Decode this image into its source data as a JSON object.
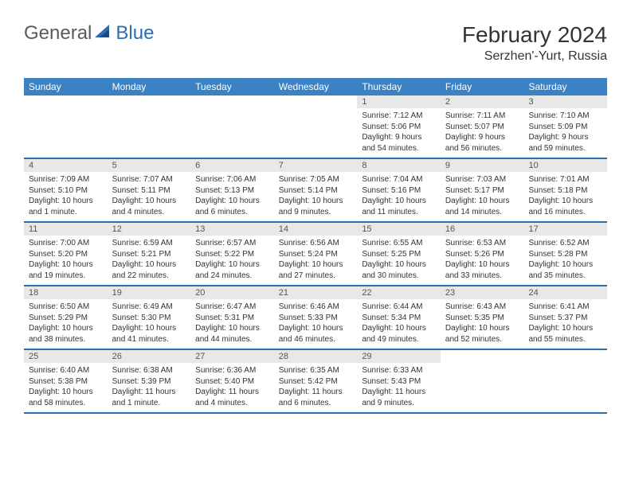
{
  "brand": {
    "word1": "General",
    "word2": "Blue",
    "logo_color": "#2a6db5",
    "text_color": "#5a5a5a"
  },
  "title": {
    "month": "February 2024",
    "location": "Serzhen'-Yurt, Russia"
  },
  "colors": {
    "header_bg": "#3b82c4",
    "header_text": "#ffffff",
    "row_border": "#2a6db5",
    "daynum_bg": "#e8e8e8",
    "body_text": "#333333"
  },
  "weekdays": [
    "Sunday",
    "Monday",
    "Tuesday",
    "Wednesday",
    "Thursday",
    "Friday",
    "Saturday"
  ],
  "weeks": [
    [
      null,
      null,
      null,
      null,
      {
        "n": "1",
        "sunrise": "7:12 AM",
        "sunset": "5:06 PM",
        "daylight": "9 hours and 54 minutes."
      },
      {
        "n": "2",
        "sunrise": "7:11 AM",
        "sunset": "5:07 PM",
        "daylight": "9 hours and 56 minutes."
      },
      {
        "n": "3",
        "sunrise": "7:10 AM",
        "sunset": "5:09 PM",
        "daylight": "9 hours and 59 minutes."
      }
    ],
    [
      {
        "n": "4",
        "sunrise": "7:09 AM",
        "sunset": "5:10 PM",
        "daylight": "10 hours and 1 minute."
      },
      {
        "n": "5",
        "sunrise": "7:07 AM",
        "sunset": "5:11 PM",
        "daylight": "10 hours and 4 minutes."
      },
      {
        "n": "6",
        "sunrise": "7:06 AM",
        "sunset": "5:13 PM",
        "daylight": "10 hours and 6 minutes."
      },
      {
        "n": "7",
        "sunrise": "7:05 AM",
        "sunset": "5:14 PM",
        "daylight": "10 hours and 9 minutes."
      },
      {
        "n": "8",
        "sunrise": "7:04 AM",
        "sunset": "5:16 PM",
        "daylight": "10 hours and 11 minutes."
      },
      {
        "n": "9",
        "sunrise": "7:03 AM",
        "sunset": "5:17 PM",
        "daylight": "10 hours and 14 minutes."
      },
      {
        "n": "10",
        "sunrise": "7:01 AM",
        "sunset": "5:18 PM",
        "daylight": "10 hours and 16 minutes."
      }
    ],
    [
      {
        "n": "11",
        "sunrise": "7:00 AM",
        "sunset": "5:20 PM",
        "daylight": "10 hours and 19 minutes."
      },
      {
        "n": "12",
        "sunrise": "6:59 AM",
        "sunset": "5:21 PM",
        "daylight": "10 hours and 22 minutes."
      },
      {
        "n": "13",
        "sunrise": "6:57 AM",
        "sunset": "5:22 PM",
        "daylight": "10 hours and 24 minutes."
      },
      {
        "n": "14",
        "sunrise": "6:56 AM",
        "sunset": "5:24 PM",
        "daylight": "10 hours and 27 minutes."
      },
      {
        "n": "15",
        "sunrise": "6:55 AM",
        "sunset": "5:25 PM",
        "daylight": "10 hours and 30 minutes."
      },
      {
        "n": "16",
        "sunrise": "6:53 AM",
        "sunset": "5:26 PM",
        "daylight": "10 hours and 33 minutes."
      },
      {
        "n": "17",
        "sunrise": "6:52 AM",
        "sunset": "5:28 PM",
        "daylight": "10 hours and 35 minutes."
      }
    ],
    [
      {
        "n": "18",
        "sunrise": "6:50 AM",
        "sunset": "5:29 PM",
        "daylight": "10 hours and 38 minutes."
      },
      {
        "n": "19",
        "sunrise": "6:49 AM",
        "sunset": "5:30 PM",
        "daylight": "10 hours and 41 minutes."
      },
      {
        "n": "20",
        "sunrise": "6:47 AM",
        "sunset": "5:31 PM",
        "daylight": "10 hours and 44 minutes."
      },
      {
        "n": "21",
        "sunrise": "6:46 AM",
        "sunset": "5:33 PM",
        "daylight": "10 hours and 46 minutes."
      },
      {
        "n": "22",
        "sunrise": "6:44 AM",
        "sunset": "5:34 PM",
        "daylight": "10 hours and 49 minutes."
      },
      {
        "n": "23",
        "sunrise": "6:43 AM",
        "sunset": "5:35 PM",
        "daylight": "10 hours and 52 minutes."
      },
      {
        "n": "24",
        "sunrise": "6:41 AM",
        "sunset": "5:37 PM",
        "daylight": "10 hours and 55 minutes."
      }
    ],
    [
      {
        "n": "25",
        "sunrise": "6:40 AM",
        "sunset": "5:38 PM",
        "daylight": "10 hours and 58 minutes."
      },
      {
        "n": "26",
        "sunrise": "6:38 AM",
        "sunset": "5:39 PM",
        "daylight": "11 hours and 1 minute."
      },
      {
        "n": "27",
        "sunrise": "6:36 AM",
        "sunset": "5:40 PM",
        "daylight": "11 hours and 4 minutes."
      },
      {
        "n": "28",
        "sunrise": "6:35 AM",
        "sunset": "5:42 PM",
        "daylight": "11 hours and 6 minutes."
      },
      {
        "n": "29",
        "sunrise": "6:33 AM",
        "sunset": "5:43 PM",
        "daylight": "11 hours and 9 minutes."
      },
      null,
      null
    ]
  ],
  "labels": {
    "sunrise": "Sunrise:",
    "sunset": "Sunset:",
    "daylight": "Daylight:"
  }
}
